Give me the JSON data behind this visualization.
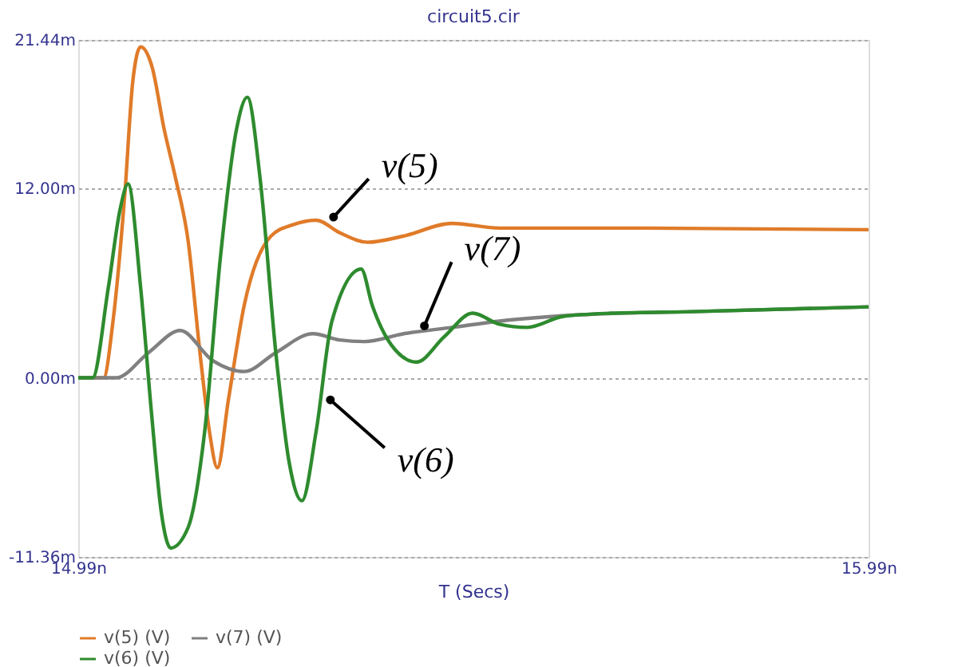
{
  "chart_data": {
    "type": "line",
    "title": "circuit5.cir",
    "xlabel": "T (Secs)",
    "xlim": [
      14.99,
      15.99
    ],
    "xticks": [
      {
        "value": 14.99,
        "label": "14.99n"
      },
      {
        "value": 15.99,
        "label": "15.99n"
      }
    ],
    "ylim": [
      -11.36,
      21.44
    ],
    "yticks": [
      {
        "value": -11.36,
        "label": "-11.36m"
      },
      {
        "value": 0,
        "label": "0.00m"
      },
      {
        "value": 12,
        "label": "12.00m"
      },
      {
        "value": 21.44,
        "label": "21.44m"
      }
    ],
    "grid": "y",
    "legend": "bottom",
    "marker": "none",
    "line_style": "solid",
    "series": [
      {
        "name": "v(5) (V)",
        "color": "#e07b29",
        "x": [
          14.99,
          15.022,
          15.034,
          15.049,
          15.059,
          15.069,
          15.083,
          15.099,
          15.113,
          15.129,
          15.144,
          15.156,
          15.166,
          15.18,
          15.2,
          15.234,
          15.261,
          15.291,
          15.321,
          15.356,
          15.402,
          15.463,
          15.523,
          15.705,
          15.99
        ],
        "values": [
          0,
          0,
          3.6,
          11.7,
          18.8,
          21.0,
          19.8,
          15.7,
          12.7,
          8.7,
          1.6,
          -3.4,
          -5.7,
          -1.4,
          4.6,
          9.0,
          9.7,
          10.0,
          9.2,
          8.6,
          9.0,
          9.8,
          9.5,
          9.5,
          9.4
        ]
      },
      {
        "name": "v(7) (V)",
        "color": "#808080",
        "x": [
          14.99,
          15.038,
          15.079,
          15.119,
          15.16,
          15.2,
          15.24,
          15.287,
          15.321,
          15.352,
          15.402,
          15.463,
          15.523,
          15.624,
          15.766,
          15.99
        ],
        "values": [
          0,
          0,
          1.6,
          3.0,
          1.1,
          0.4,
          1.6,
          2.8,
          2.4,
          2.3,
          2.8,
          3.2,
          3.6,
          4.0,
          4.2,
          4.5
        ]
      },
      {
        "name": "v(6) (V)",
        "color": "#2e8b2e",
        "x": [
          14.99,
          15.008,
          15.028,
          15.043,
          15.053,
          15.069,
          15.083,
          15.095,
          15.107,
          15.129,
          15.15,
          15.17,
          15.19,
          15.204,
          15.22,
          15.24,
          15.257,
          15.273,
          15.291,
          15.311,
          15.348,
          15.362,
          15.386,
          15.418,
          15.453,
          15.489,
          15.523,
          15.558,
          15.604,
          15.665,
          15.766,
          15.99
        ],
        "values": [
          0,
          0,
          5.7,
          10.7,
          12.3,
          5.7,
          -2.4,
          -8.5,
          -10.8,
          -9.5,
          -3.4,
          7.7,
          15.7,
          17.8,
          12.7,
          1.6,
          -5.4,
          -7.8,
          -3.4,
          3.6,
          6.9,
          4.6,
          2.1,
          1.0,
          2.6,
          4.1,
          3.4,
          3.2,
          3.9,
          4.1,
          4.2,
          4.5
        ]
      }
    ],
    "annotations": [
      {
        "text": "v(5)",
        "x": 15.313,
        "y": 10.2
      },
      {
        "text": "v(7)",
        "x": 15.428,
        "y": 3.3
      },
      {
        "text": "v(6)",
        "x": 15.309,
        "y": -1.4
      }
    ]
  }
}
